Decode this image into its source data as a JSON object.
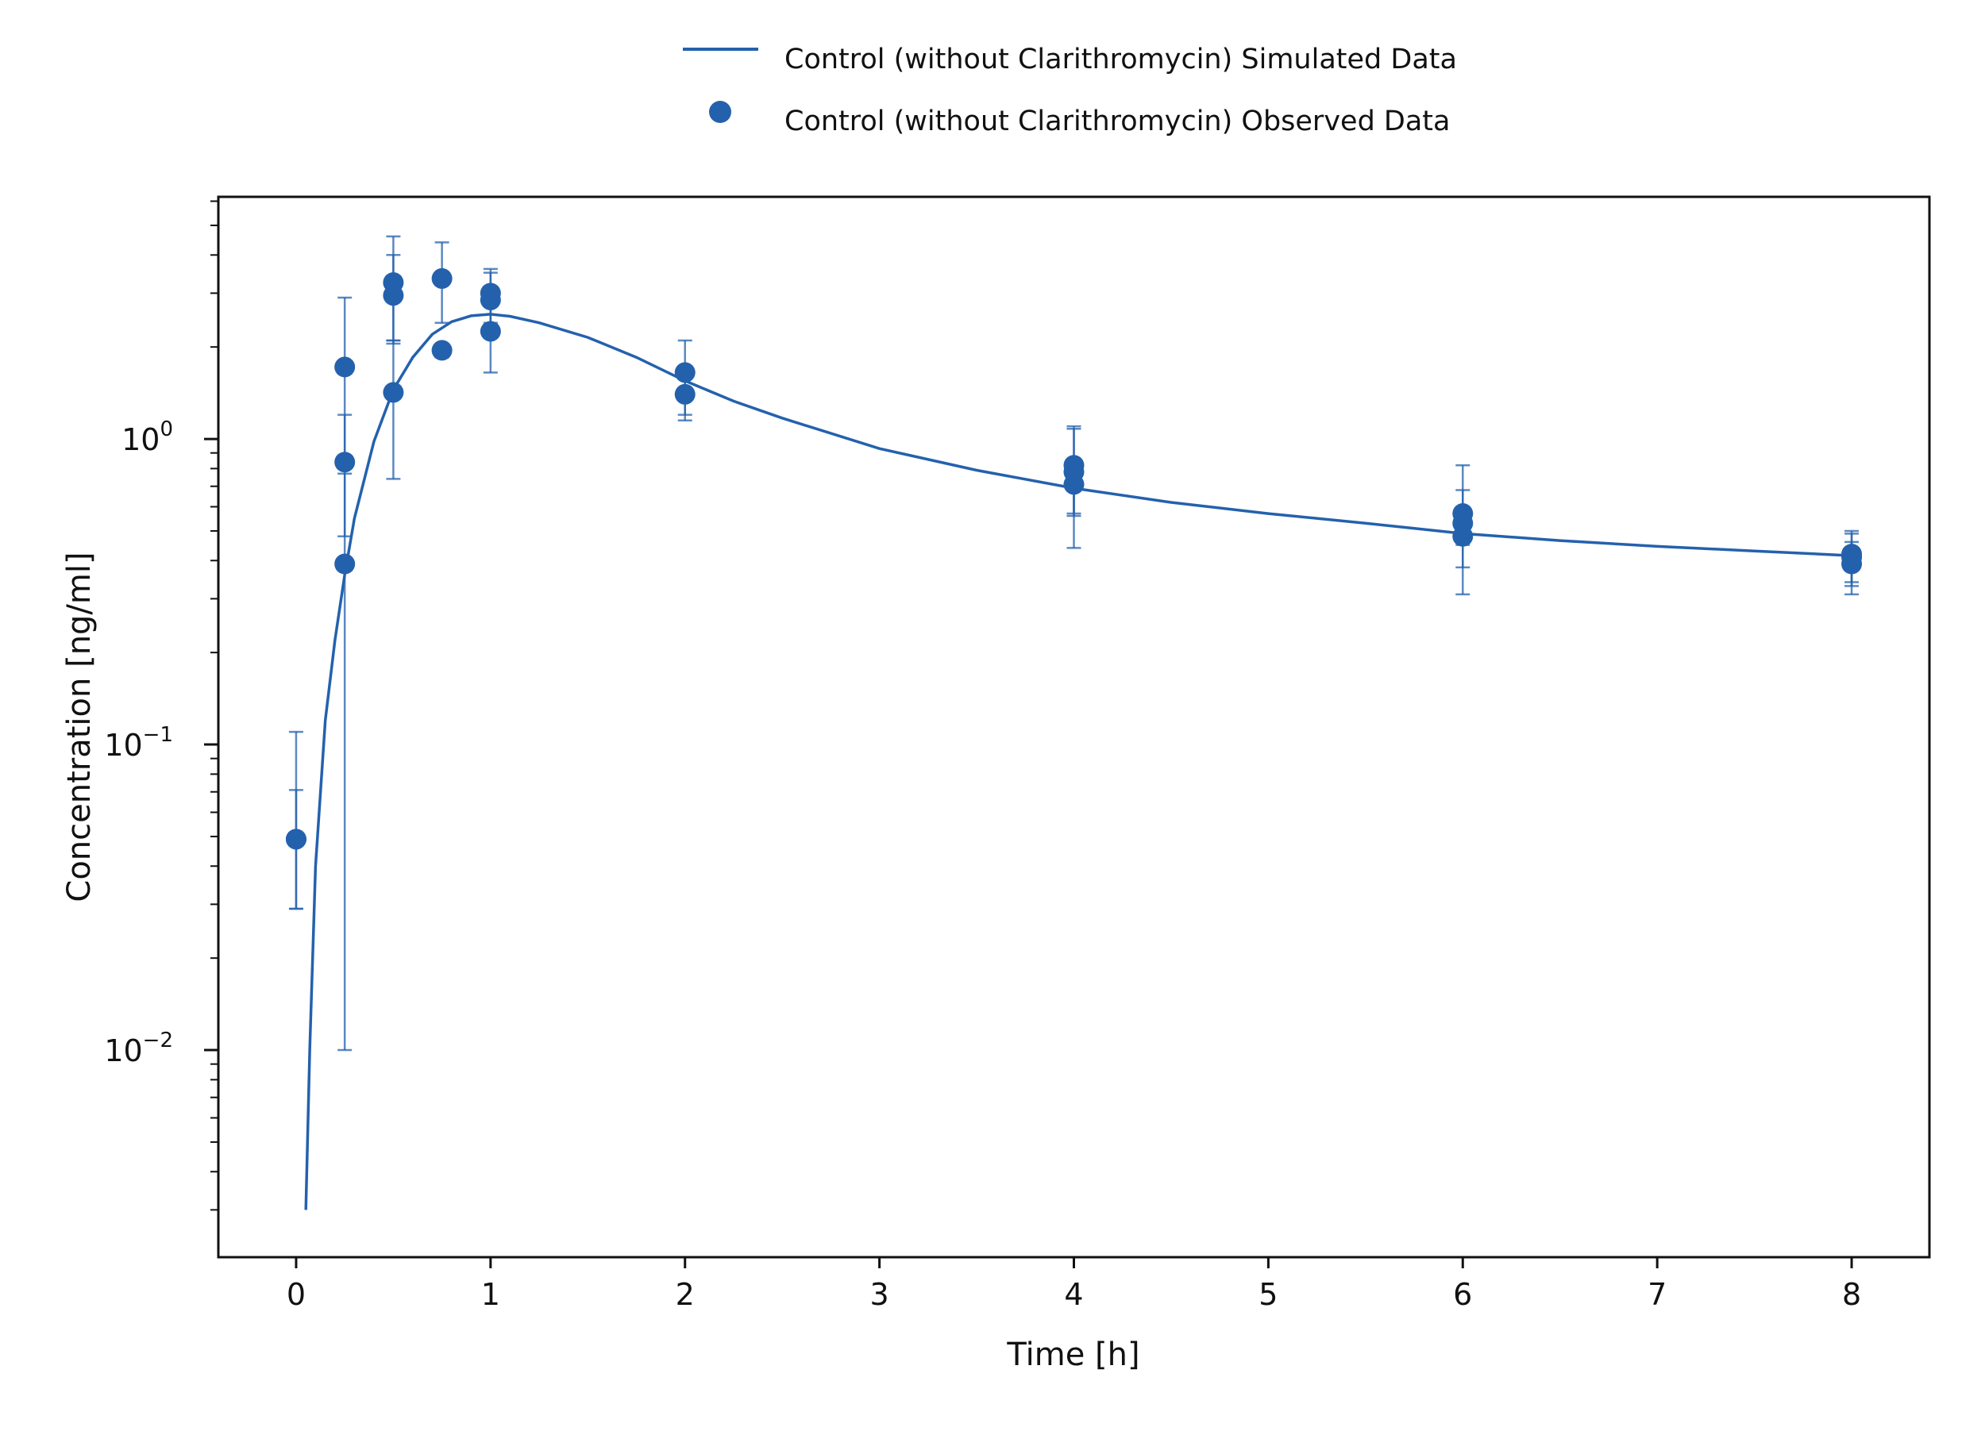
{
  "chart_data": {
    "type": "scatter",
    "title": "",
    "xlabel": "Time [h]",
    "ylabel": "Concentration [ng/ml]",
    "xlim": [
      -0.4,
      8.4
    ],
    "ylim": [
      0.0021,
      6.2
    ],
    "yscale": "log",
    "x_ticks": [
      0,
      1,
      2,
      3,
      4,
      5,
      6,
      7,
      8
    ],
    "y_ticks": [
      {
        "value": 1,
        "base": "10",
        "exp": "0"
      },
      {
        "value": 0.1,
        "base": "10",
        "exp": "−1"
      },
      {
        "value": 0.01,
        "base": "10",
        "exp": "−2"
      }
    ],
    "grid": false,
    "legend_position": "top-center",
    "color": "#2461AD",
    "series": [
      {
        "name": "Control (without Clarithromycin) Simulated Data",
        "kind": "line",
        "points": [
          [
            0.05,
            0.003
          ],
          [
            0.07,
            0.01
          ],
          [
            0.1,
            0.04
          ],
          [
            0.15,
            0.12
          ],
          [
            0.2,
            0.22
          ],
          [
            0.25,
            0.36
          ],
          [
            0.3,
            0.55
          ],
          [
            0.4,
            0.98
          ],
          [
            0.5,
            1.45
          ],
          [
            0.6,
            1.85
          ],
          [
            0.7,
            2.2
          ],
          [
            0.8,
            2.42
          ],
          [
            0.9,
            2.53
          ],
          [
            1.0,
            2.56
          ],
          [
            1.1,
            2.52
          ],
          [
            1.25,
            2.4
          ],
          [
            1.5,
            2.15
          ],
          [
            1.75,
            1.85
          ],
          [
            2.0,
            1.55
          ],
          [
            2.25,
            1.33
          ],
          [
            2.5,
            1.17
          ],
          [
            3.0,
            0.93
          ],
          [
            3.5,
            0.79
          ],
          [
            4.0,
            0.69
          ],
          [
            4.5,
            0.62
          ],
          [
            5.0,
            0.57
          ],
          [
            5.5,
            0.53
          ],
          [
            6.0,
            0.49
          ],
          [
            6.5,
            0.465
          ],
          [
            7.0,
            0.445
          ],
          [
            7.5,
            0.43
          ],
          [
            8.0,
            0.415
          ]
        ]
      },
      {
        "name": "Control (without Clarithromycin) Observed Data",
        "kind": "scatter",
        "points": [
          {
            "x": 0,
            "y": 0.049,
            "lo": 0.029,
            "hi": 0.071
          },
          {
            "x": 0,
            "y": 0.049,
            "lo": 0.029,
            "hi": 0.11
          },
          {
            "x": 0.25,
            "y": 1.72,
            "lo": 0.82,
            "hi": 2.9
          },
          {
            "x": 0.25,
            "y": 0.84,
            "lo": 0.48,
            "hi": 1.2
          },
          {
            "x": 0.25,
            "y": 0.39,
            "lo": 0.01,
            "hi": 0.77
          },
          {
            "x": 0.5,
            "y": 3.25,
            "lo": 2.1,
            "hi": 4.6
          },
          {
            "x": 0.5,
            "y": 2.95,
            "lo": 2.05,
            "hi": 4.0
          },
          {
            "x": 0.5,
            "y": 1.42,
            "lo": 0.74,
            "hi": 2.1
          },
          {
            "x": 0.75,
            "y": 3.35,
            "lo": 2.4,
            "hi": 4.4
          },
          {
            "x": 0.75,
            "y": 1.95,
            "lo": 1.85,
            "hi": 2.05
          },
          {
            "x": 1.0,
            "y": 3.0,
            "lo": 2.4,
            "hi": 3.6
          },
          {
            "x": 1.0,
            "y": 2.85,
            "lo": 2.2,
            "hi": 3.5
          },
          {
            "x": 1.0,
            "y": 2.25,
            "lo": 1.65,
            "hi": 2.9
          },
          {
            "x": 2.0,
            "y": 1.65,
            "lo": 1.2,
            "hi": 2.1
          },
          {
            "x": 2.0,
            "y": 1.4,
            "lo": 1.15,
            "hi": 1.65
          },
          {
            "x": 4.0,
            "y": 0.82,
            "lo": 0.57,
            "hi": 1.1
          },
          {
            "x": 4.0,
            "y": 0.78,
            "lo": 0.44,
            "hi": 1.08
          },
          {
            "x": 4.0,
            "y": 0.71,
            "lo": 0.56,
            "hi": 0.86
          },
          {
            "x": 6.0,
            "y": 0.57,
            "lo": 0.45,
            "hi": 0.68
          },
          {
            "x": 6.0,
            "y": 0.53,
            "lo": 0.31,
            "hi": 0.82
          },
          {
            "x": 6.0,
            "y": 0.48,
            "lo": 0.38,
            "hi": 0.6
          },
          {
            "x": 8.0,
            "y": 0.42,
            "lo": 0.34,
            "hi": 0.5
          },
          {
            "x": 8.0,
            "y": 0.41,
            "lo": 0.31,
            "hi": 0.49
          },
          {
            "x": 8.0,
            "y": 0.39,
            "lo": 0.33,
            "hi": 0.46
          }
        ]
      }
    ]
  }
}
